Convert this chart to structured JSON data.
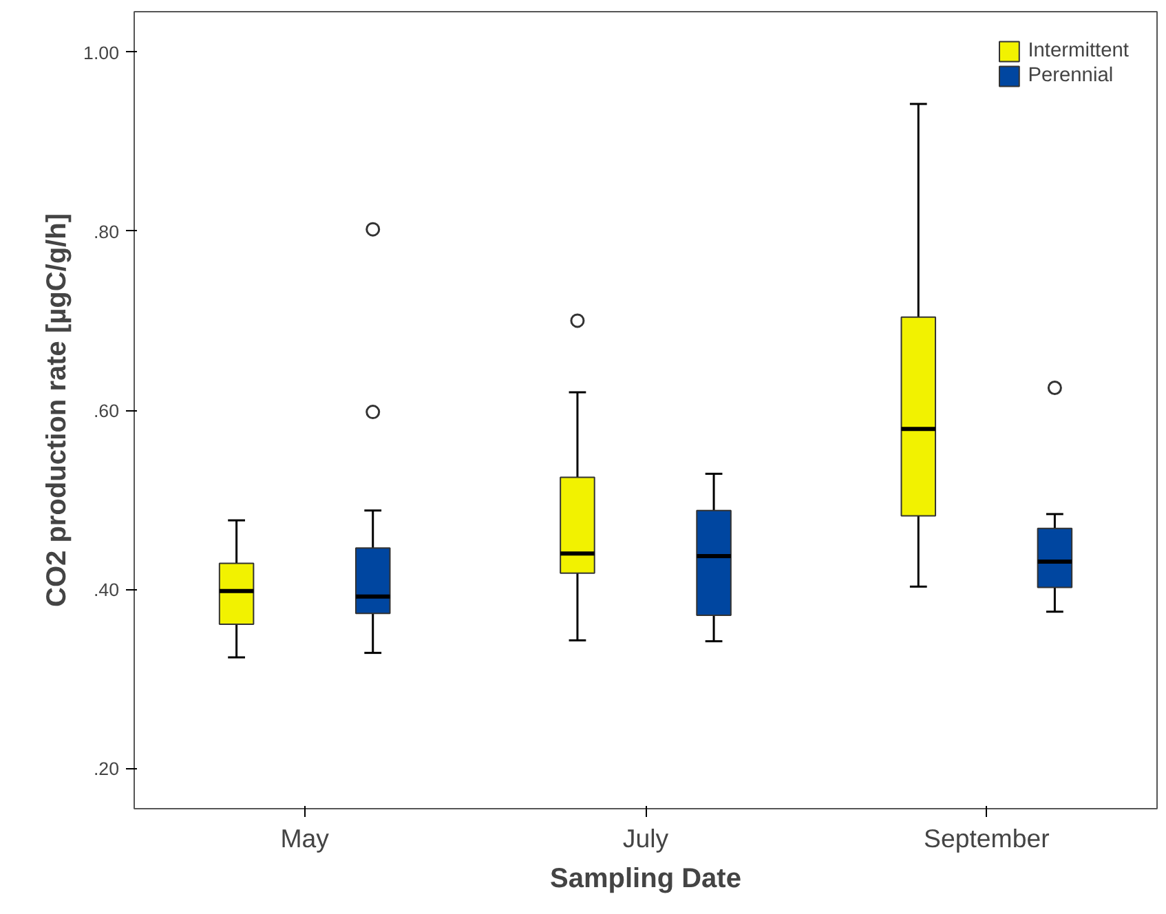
{
  "chart_data": {
    "type": "box",
    "xlabel": "Sampling Date",
    "ylabel": "CO2 production rate [µgC/g/h]",
    "categories": [
      "May",
      "July",
      "September"
    ],
    "series": [
      {
        "name": "Intermittent",
        "color": "#f2f200",
        "boxes": [
          {
            "low": 0.324,
            "q1": 0.361,
            "median": 0.398,
            "q3": 0.429,
            "high": 0.477
          },
          {
            "low": 0.343,
            "q1": 0.418,
            "median": 0.44,
            "q3": 0.525,
            "high": 0.62,
            "outliers": [
              0.7
            ]
          },
          {
            "low": 0.403,
            "q1": 0.482,
            "median": 0.579,
            "q3": 0.704,
            "high": 0.942
          }
        ]
      },
      {
        "name": "Perennial",
        "color": "#0046a0",
        "boxes": [
          {
            "low": 0.329,
            "q1": 0.373,
            "median": 0.392,
            "q3": 0.446,
            "high": 0.488,
            "outliers": [
              0.598,
              0.802
            ]
          },
          {
            "low": 0.342,
            "q1": 0.371,
            "median": 0.437,
            "q3": 0.488,
            "high": 0.529
          },
          {
            "low": 0.375,
            "q1": 0.402,
            "median": 0.431,
            "q3": 0.468,
            "high": 0.484,
            "outliers": [
              0.625
            ]
          }
        ]
      }
    ],
    "ylim": [
      0.155,
      1.045
    ],
    "yticks": [
      {
        "value": 0.2,
        "label": ".20"
      },
      {
        "value": 0.4,
        "label": ".40"
      },
      {
        "value": 0.6,
        "label": ".60"
      },
      {
        "value": 0.8,
        "label": ".80"
      },
      {
        "value": 1.0,
        "label": "1.00"
      }
    ],
    "grid": false,
    "legend": "top right"
  }
}
